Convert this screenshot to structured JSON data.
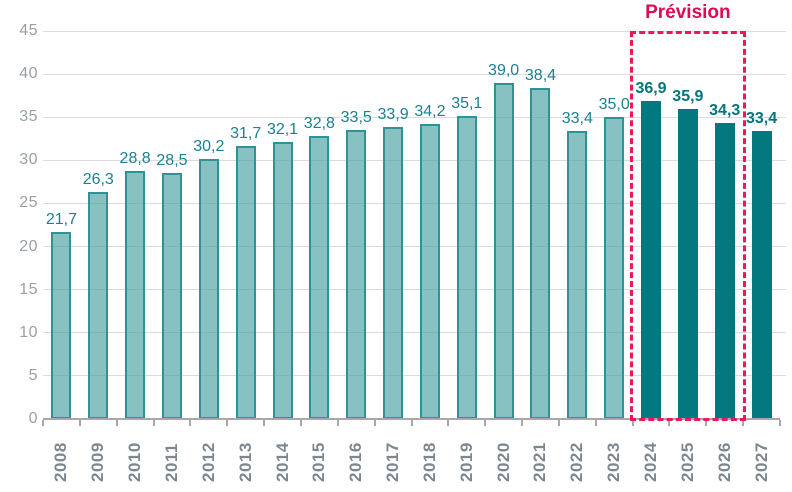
{
  "prevision": {
    "label": "Prévision"
  },
  "colors": {
    "bar_fill_actual": "rgba(70,160,161,0.65)",
    "bar_border_actual": "#2f9296",
    "bar_fill_forecast": "#04787f",
    "value_label_actual": "#1a8192",
    "value_label_forecast": "#04757d",
    "axis_text": "#99a0a8",
    "year_text": "#7d8790",
    "gridline": "#dcdcdc",
    "axis_line": "#a8a8a8",
    "prevision_pink": "#ee1758",
    "prevision_text": "#dd0a56"
  },
  "chart_data": {
    "type": "bar",
    "title": "",
    "xlabel": "",
    "ylabel": "",
    "categories": [
      "2008",
      "2009",
      "2010",
      "2011",
      "2012",
      "2013",
      "2014",
      "2015",
      "2016",
      "2017",
      "2018",
      "2019",
      "2020",
      "2021",
      "2022",
      "2023",
      "2024",
      "2025",
      "2026",
      "2027"
    ],
    "values": [
      21.7,
      26.3,
      28.8,
      28.5,
      30.2,
      31.7,
      32.1,
      32.8,
      33.5,
      33.9,
      34.2,
      35.1,
      39.0,
      38.4,
      33.4,
      35.0,
      36.9,
      35.9,
      34.3,
      33.4
    ],
    "value_labels": [
      "21,7",
      "26,3",
      "28,8",
      "28,5",
      "30,2",
      "31,7",
      "32,1",
      "32,8",
      "33,5",
      "33,9",
      "34,2",
      "35,1",
      "39,0",
      "38,4",
      "33,4",
      "35,0",
      "36,9",
      "35,9",
      "34,3",
      "33,4"
    ],
    "forecast_start_index": 16,
    "forecast_box": {
      "from": "2024",
      "to": "2026",
      "label": "Prévision"
    },
    "ylim": [
      0,
      45
    ],
    "yticks": [
      0,
      5,
      10,
      15,
      20,
      25,
      30,
      35,
      40,
      45
    ],
    "grid": true,
    "legend": "none"
  }
}
